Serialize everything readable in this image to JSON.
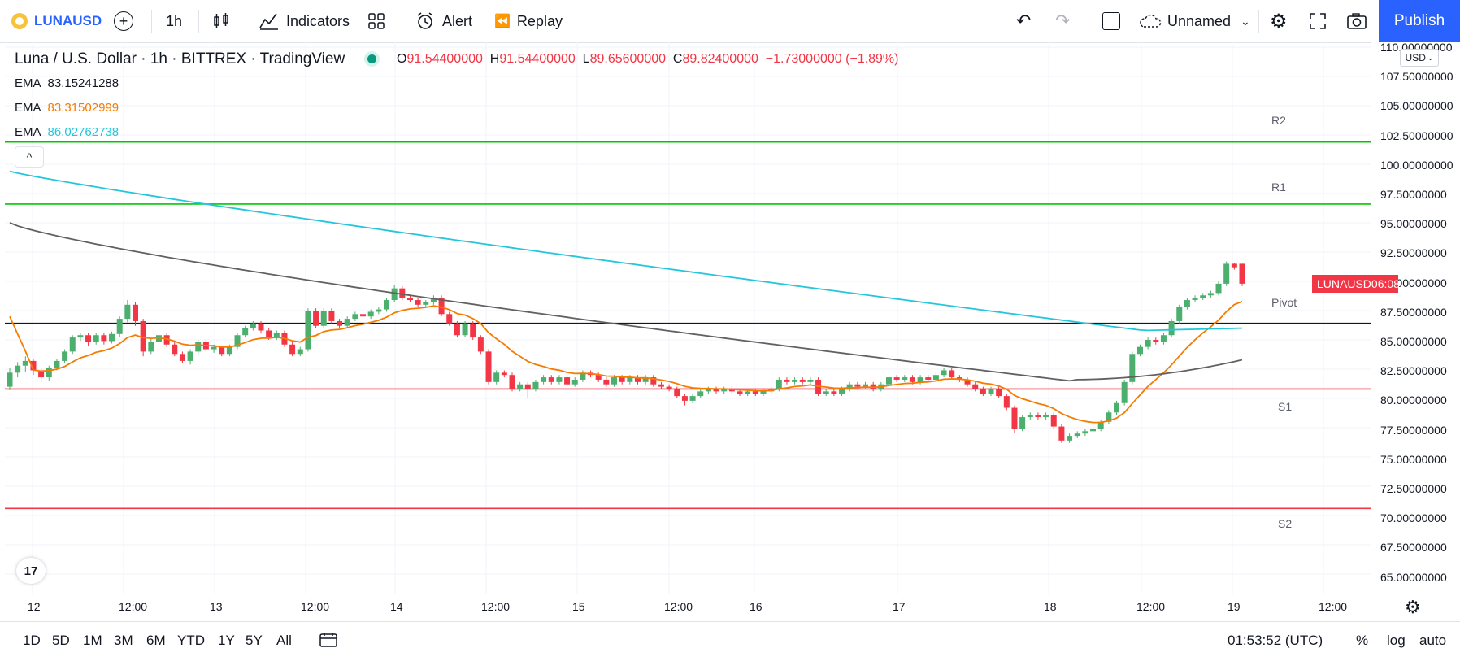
{
  "toolbar": {
    "symbol": "LUNAUSD",
    "interval": "1h",
    "indicators": "Indicators",
    "alert": "Alert",
    "replay": "Replay",
    "layout_name": "Unnamed",
    "publish": "Publish"
  },
  "legend": {
    "title": "Luna / U.S. Dollar · 1h · BITTREX · TradingView",
    "o_label": "O",
    "o": "91.54400000",
    "h_label": "H",
    "h": "91.54400000",
    "l_label": "L",
    "l": "89.65600000",
    "c_label": "C",
    "c": "89.82400000",
    "change": "−1.73000000 (−1.89%)",
    "emas": [
      {
        "label": "EMA",
        "value": "83.15241288",
        "color": "#131722"
      },
      {
        "label": "EMA",
        "value": "83.31502999",
        "color": "#f57c00"
      },
      {
        "label": "EMA",
        "value": "86.02762738",
        "color": "#26c6da"
      }
    ]
  },
  "price_axis": {
    "currency": "USD",
    "ticks": [
      "110.00000000",
      "107.50000000",
      "105.00000000",
      "102.50000000",
      "100.00000000",
      "97.50000000",
      "95.00000000",
      "92.50000000",
      "90.00000000",
      "87.50000000",
      "85.00000000",
      "82.50000000",
      "80.00000000",
      "77.50000000",
      "75.00000000",
      "72.50000000",
      "70.00000000",
      "67.50000000",
      "65.00000000"
    ],
    "badge_symbol": "LUNAUSD",
    "badge_time": "06:08"
  },
  "time_axis": {
    "ticks": [
      "12",
      "12:00",
      "13",
      "12:00",
      "14",
      "12:00",
      "15",
      "12:00",
      "16",
      "17",
      "18",
      "12:00",
      "19",
      "12:00"
    ]
  },
  "pivot_labels": [
    "R2",
    "R1",
    "Pivot",
    "S1",
    "S2"
  ],
  "bottom": {
    "ranges": [
      "1D",
      "5D",
      "1M",
      "3M",
      "6M",
      "YTD",
      "1Y",
      "5Y",
      "All"
    ],
    "clock": "01:53:52 (UTC)",
    "percent": "%",
    "log": "log",
    "auto": "auto"
  },
  "colors": {
    "up": "#26a69a",
    "up_fill": "#4caf6e",
    "down": "#f23645",
    "r_lines": "#00c800",
    "s_lines": "#f23645",
    "pivot_line": "#131722",
    "ema_cyan": "#26c6da",
    "ema_orange": "#f57c00",
    "ema_gray": "#555555",
    "accent": "#2962ff"
  },
  "chart_data": {
    "type": "candlestick",
    "ylim": [
      63.5,
      111
    ],
    "pivots": {
      "R2": 101.9,
      "R1": 96.6,
      "Pivot": 86.4,
      "S1": 80.8,
      "S2": 70.6
    },
    "candles": [
      [
        81.0,
        82.2,
        80.7,
        82.6
      ],
      [
        82.2,
        82.8,
        81.8,
        83.1
      ],
      [
        82.8,
        83.2,
        82.3,
        83.6
      ],
      [
        83.2,
        82.4,
        82.0,
        83.4
      ],
      [
        82.4,
        81.8,
        81.4,
        82.6
      ],
      [
        81.8,
        82.6,
        81.5,
        82.8
      ],
      [
        82.6,
        83.2,
        82.4,
        83.4
      ],
      [
        83.2,
        84.0,
        83.0,
        84.2
      ],
      [
        84.0,
        85.2,
        83.8,
        85.4
      ],
      [
        85.2,
        85.4,
        84.9,
        85.6
      ],
      [
        85.4,
        84.8,
        84.5,
        85.6
      ],
      [
        84.8,
        85.4,
        84.6,
        85.6
      ],
      [
        85.4,
        84.9,
        84.6,
        85.6
      ],
      [
        84.9,
        85.5,
        84.7,
        85.7
      ],
      [
        85.5,
        86.8,
        85.2,
        87.0
      ],
      [
        86.8,
        88.0,
        86.5,
        88.4
      ],
      [
        88.0,
        86.6,
        86.2,
        88.2
      ],
      [
        86.6,
        84.0,
        83.6,
        86.8
      ],
      [
        84.0,
        84.8,
        83.8,
        85.1
      ],
      [
        84.8,
        85.4,
        84.6,
        85.6
      ],
      [
        85.4,
        84.6,
        84.4,
        85.6
      ],
      [
        84.6,
        83.8,
        83.6,
        84.8
      ],
      [
        83.8,
        83.2,
        83.0,
        84.0
      ],
      [
        83.2,
        84.0,
        82.9,
        84.2
      ],
      [
        84.0,
        84.8,
        83.8,
        85.0
      ],
      [
        84.8,
        84.2,
        84.0,
        85.0
      ],
      [
        84.2,
        84.4,
        83.9,
        84.6
      ],
      [
        84.4,
        83.8,
        83.6,
        84.5
      ],
      [
        83.8,
        84.4,
        83.6,
        84.6
      ],
      [
        84.4,
        85.4,
        84.2,
        85.6
      ],
      [
        85.4,
        86.0,
        85.2,
        86.2
      ],
      [
        86.0,
        86.4,
        85.8,
        86.6
      ],
      [
        86.4,
        85.8,
        85.6,
        86.6
      ],
      [
        85.8,
        85.2,
        85.0,
        86.0
      ],
      [
        85.2,
        85.6,
        85.0,
        85.8
      ],
      [
        85.6,
        84.6,
        84.4,
        85.8
      ],
      [
        84.6,
        83.8,
        83.6,
        84.8
      ],
      [
        83.8,
        84.2,
        83.6,
        84.4
      ],
      [
        84.2,
        87.5,
        84.0,
        87.7
      ],
      [
        87.5,
        86.2,
        86.0,
        87.7
      ],
      [
        86.2,
        87.5,
        86.0,
        87.7
      ],
      [
        87.5,
        86.6,
        86.4,
        87.7
      ],
      [
        86.6,
        86.2,
        86.0,
        86.8
      ],
      [
        86.2,
        86.8,
        86.0,
        87.0
      ],
      [
        86.8,
        87.2,
        86.6,
        87.4
      ],
      [
        87.2,
        87.0,
        86.8,
        87.4
      ],
      [
        87.0,
        87.4,
        86.8,
        87.6
      ],
      [
        87.4,
        87.6,
        87.2,
        87.8
      ],
      [
        87.6,
        88.4,
        87.4,
        88.6
      ],
      [
        88.4,
        89.4,
        88.2,
        89.7
      ],
      [
        89.4,
        88.6,
        88.4,
        89.6
      ],
      [
        88.6,
        88.4,
        88.2,
        88.8
      ],
      [
        88.4,
        88.0,
        87.8,
        88.6
      ],
      [
        88.0,
        88.2,
        87.8,
        88.4
      ],
      [
        88.2,
        88.6,
        88.0,
        88.8
      ],
      [
        88.6,
        87.2,
        87.0,
        88.8
      ],
      [
        87.2,
        86.4,
        86.2,
        87.4
      ],
      [
        86.4,
        85.4,
        85.2,
        86.6
      ],
      [
        85.4,
        86.4,
        85.2,
        86.6
      ],
      [
        86.4,
        85.2,
        85.0,
        86.6
      ],
      [
        85.2,
        84.0,
        83.8,
        85.4
      ],
      [
        84.0,
        81.4,
        81.2,
        84.2
      ],
      [
        81.4,
        82.2,
        81.2,
        82.4
      ],
      [
        82.2,
        82.0,
        81.8,
        82.4
      ],
      [
        82.0,
        80.8,
        80.6,
        82.2
      ],
      [
        80.8,
        81.2,
        80.6,
        81.4
      ],
      [
        81.2,
        80.8,
        80.0,
        81.4
      ],
      [
        80.8,
        81.4,
        80.6,
        81.6
      ],
      [
        81.4,
        81.8,
        81.2,
        82.0
      ],
      [
        81.8,
        81.4,
        81.2,
        82.0
      ],
      [
        81.4,
        81.8,
        81.2,
        82.0
      ],
      [
        81.8,
        81.2,
        81.0,
        82.0
      ],
      [
        81.2,
        81.6,
        81.0,
        81.8
      ],
      [
        81.6,
        82.2,
        81.4,
        82.4
      ],
      [
        82.2,
        82.0,
        81.8,
        82.4
      ],
      [
        82.0,
        81.6,
        81.4,
        82.2
      ],
      [
        81.6,
        81.2,
        81.0,
        81.8
      ],
      [
        81.2,
        81.8,
        81.0,
        82.0
      ],
      [
        81.8,
        81.4,
        81.2,
        82.0
      ],
      [
        81.4,
        81.8,
        81.2,
        82.0
      ],
      [
        81.8,
        81.4,
        81.2,
        82.0
      ],
      [
        81.4,
        81.8,
        81.2,
        82.0
      ],
      [
        81.8,
        81.2,
        81.0,
        82.0
      ],
      [
        81.2,
        81.0,
        80.8,
        81.4
      ],
      [
        81.0,
        80.8,
        80.6,
        81.2
      ],
      [
        80.8,
        80.2,
        80.0,
        81.0
      ],
      [
        80.2,
        79.8,
        79.4,
        80.4
      ],
      [
        79.8,
        80.2,
        79.6,
        80.4
      ],
      [
        80.2,
        80.6,
        80.0,
        80.8
      ],
      [
        80.6,
        80.8,
        80.4,
        81.0
      ],
      [
        80.8,
        80.6,
        80.4,
        81.0
      ],
      [
        80.6,
        80.8,
        80.4,
        81.0
      ],
      [
        80.8,
        80.6,
        80.4,
        81.0
      ],
      [
        80.6,
        80.4,
        80.2,
        80.8
      ],
      [
        80.4,
        80.6,
        80.2,
        80.8
      ],
      [
        80.6,
        80.4,
        80.2,
        80.8
      ],
      [
        80.4,
        80.6,
        80.2,
        80.8
      ],
      [
        80.6,
        80.8,
        80.4,
        81.0
      ],
      [
        80.8,
        81.6,
        80.6,
        81.8
      ],
      [
        81.6,
        81.4,
        81.2,
        81.8
      ],
      [
        81.4,
        81.6,
        81.2,
        81.8
      ],
      [
        81.6,
        81.4,
        81.2,
        81.8
      ],
      [
        81.4,
        81.6,
        81.2,
        81.8
      ],
      [
        81.6,
        80.4,
        80.2,
        81.8
      ],
      [
        80.4,
        80.6,
        80.2,
        80.8
      ],
      [
        80.6,
        80.4,
        80.2,
        80.8
      ],
      [
        80.4,
        80.8,
        80.2,
        81.0
      ],
      [
        80.8,
        81.2,
        80.6,
        81.4
      ],
      [
        81.2,
        81.0,
        80.8,
        81.4
      ],
      [
        81.0,
        81.2,
        80.8,
        81.4
      ],
      [
        81.2,
        80.8,
        80.6,
        81.4
      ],
      [
        80.8,
        81.2,
        80.6,
        81.4
      ],
      [
        81.2,
        81.8,
        81.0,
        82.0
      ],
      [
        81.8,
        81.6,
        81.4,
        82.0
      ],
      [
        81.6,
        81.8,
        81.4,
        82.0
      ],
      [
        81.8,
        81.4,
        81.2,
        82.0
      ],
      [
        81.4,
        81.8,
        81.2,
        82.0
      ],
      [
        81.8,
        81.6,
        81.4,
        82.0
      ],
      [
        81.6,
        82.0,
        81.4,
        82.2
      ],
      [
        82.0,
        82.4,
        81.8,
        82.6
      ],
      [
        82.4,
        81.8,
        81.6,
        82.6
      ],
      [
        81.8,
        81.6,
        81.4,
        82.0
      ],
      [
        81.6,
        81.2,
        81.0,
        81.8
      ],
      [
        81.2,
        80.8,
        80.6,
        81.4
      ],
      [
        80.8,
        80.4,
        80.2,
        81.0
      ],
      [
        80.4,
        80.8,
        80.2,
        81.0
      ],
      [
        80.8,
        80.2,
        80.0,
        81.0
      ],
      [
        80.2,
        79.2,
        79.0,
        80.4
      ],
      [
        79.2,
        77.4,
        77.0,
        79.4
      ],
      [
        77.4,
        78.4,
        77.2,
        78.6
      ],
      [
        78.4,
        78.6,
        78.2,
        78.8
      ],
      [
        78.6,
        78.4,
        78.2,
        78.8
      ],
      [
        78.4,
        78.6,
        78.2,
        78.8
      ],
      [
        78.6,
        77.6,
        77.4,
        78.8
      ],
      [
        77.6,
        76.4,
        76.2,
        77.8
      ],
      [
        76.4,
        76.8,
        76.2,
        77.0
      ],
      [
        76.8,
        77.0,
        76.6,
        77.2
      ],
      [
        77.0,
        77.2,
        76.8,
        77.4
      ],
      [
        77.2,
        77.4,
        77.0,
        77.6
      ],
      [
        77.4,
        78.0,
        77.2,
        78.2
      ],
      [
        78.0,
        78.8,
        77.8,
        79.0
      ],
      [
        78.8,
        79.6,
        78.6,
        79.8
      ],
      [
        79.6,
        81.4,
        79.4,
        81.6
      ],
      [
        81.4,
        83.8,
        81.2,
        84.0
      ],
      [
        83.8,
        84.4,
        83.6,
        84.6
      ],
      [
        84.4,
        85.0,
        84.2,
        85.2
      ],
      [
        85.0,
        84.8,
        84.6,
        85.2
      ],
      [
        84.8,
        85.4,
        84.6,
        85.6
      ],
      [
        85.4,
        86.6,
        85.2,
        86.8
      ],
      [
        86.6,
        87.8,
        86.4,
        88.0
      ],
      [
        87.8,
        88.4,
        87.6,
        88.6
      ],
      [
        88.4,
        88.6,
        88.2,
        88.8
      ],
      [
        88.6,
        88.8,
        88.4,
        89.0
      ],
      [
        88.8,
        89.0,
        88.6,
        89.2
      ],
      [
        89.0,
        89.8,
        88.8,
        90.0
      ],
      [
        89.8,
        91.5,
        89.6,
        91.7
      ],
      [
        91.5,
        91.2,
        91.0,
        91.6
      ],
      [
        91.5,
        89.8,
        89.6,
        91.5
      ]
    ]
  }
}
